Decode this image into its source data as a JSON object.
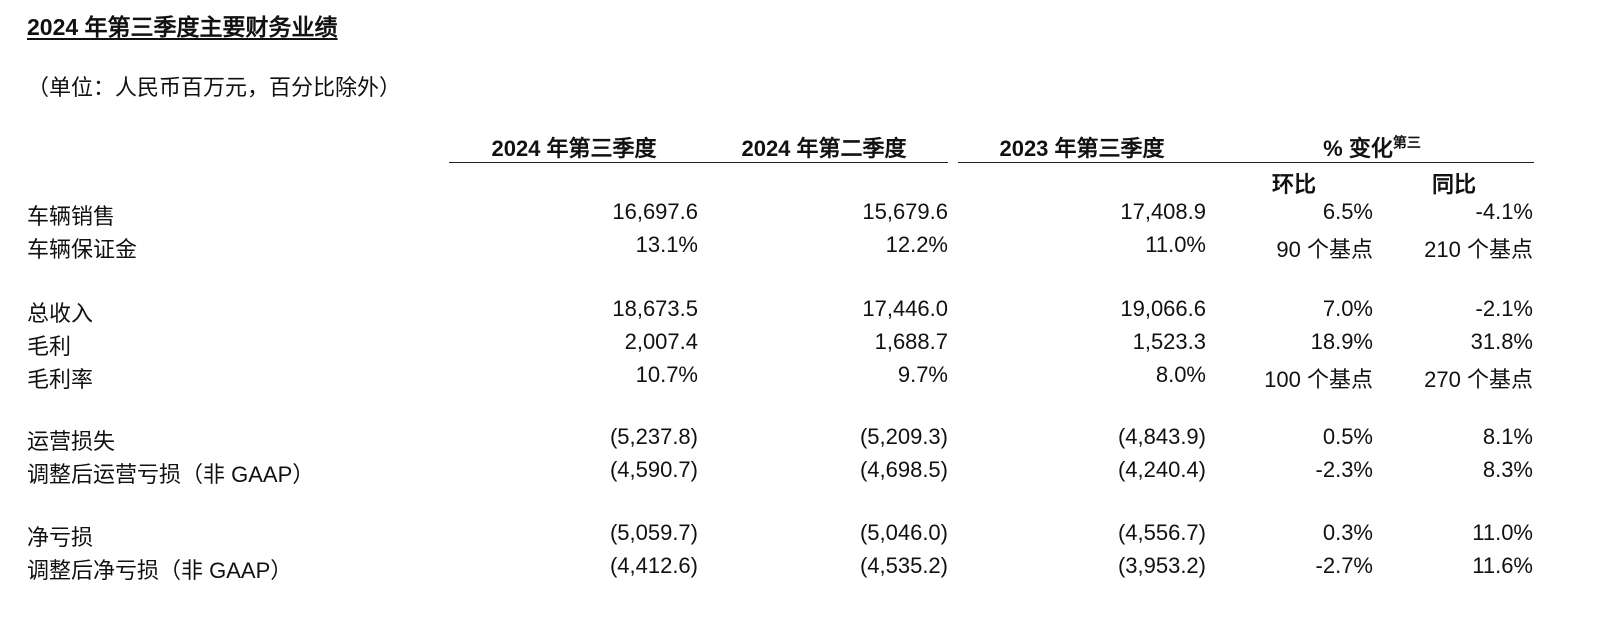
{
  "title": "2024 年第三季度主要财务业绩",
  "unit_note": "（单位：人民币百万元，百分比除外）",
  "columns": {
    "q3_2024": "2024 年第三季度",
    "q2_2024": "2024 年第二季度",
    "q3_2023": "2023 年第三季度",
    "change": "% 变化",
    "change_sup": "第三",
    "qoq": "环比",
    "yoy": "同比"
  },
  "rows": [
    {
      "label": "车辆销售",
      "q3_2024": "16,697.6",
      "q2_2024": "15,679.6",
      "q3_2023": "17,408.9",
      "qoq": "6.5%",
      "yoy": "-4.1%"
    },
    {
      "label": "车辆保证金",
      "q3_2024": "13.1%",
      "q2_2024": "12.2%",
      "q3_2023": "11.0%",
      "qoq": "90 个基点",
      "yoy": "210 个基点"
    },
    {
      "label": "总收入",
      "q3_2024": "18,673.5",
      "q2_2024": "17,446.0",
      "q3_2023": "19,066.6",
      "qoq": "7.0%",
      "yoy": "-2.1%"
    },
    {
      "label": "毛利",
      "q3_2024": "2,007.4",
      "q2_2024": "1,688.7",
      "q3_2023": "1,523.3",
      "qoq": "18.9%",
      "yoy": "31.8%"
    },
    {
      "label": "毛利率",
      "q3_2024": "10.7%",
      "q2_2024": "9.7%",
      "q3_2023": "8.0%",
      "qoq": "100 个基点",
      "yoy": "270 个基点"
    },
    {
      "label": "运营损失",
      "q3_2024": "(5,237.8)",
      "q2_2024": "(5,209.3)",
      "q3_2023": "(4,843.9)",
      "qoq": "0.5%",
      "yoy": "8.1%"
    },
    {
      "label": "调整后运营亏损（非 GAAP）",
      "q3_2024": "(4,590.7)",
      "q2_2024": "(4,698.5)",
      "q3_2023": "(4,240.4)",
      "qoq": "-2.3%",
      "yoy": "8.3%"
    },
    {
      "label": "净亏损",
      "q3_2024": "(5,059.7)",
      "q2_2024": "(5,046.0)",
      "q3_2023": "(4,556.7)",
      "qoq": "0.3%",
      "yoy": "11.0%"
    },
    {
      "label": "调整后净亏损（非 GAAP）",
      "q3_2024": "(4,412.6)",
      "q2_2024": "(4,535.2)",
      "q3_2023": "(3,953.2)",
      "qoq": "-2.7%",
      "yoy": "11.6%"
    }
  ]
}
